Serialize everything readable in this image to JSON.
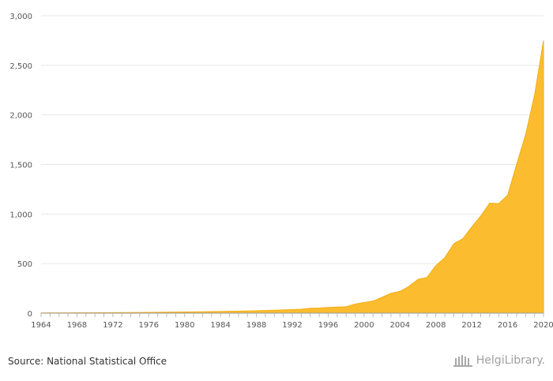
{
  "chart_data": {
    "type": "area",
    "x": [
      1964,
      1965,
      1966,
      1967,
      1968,
      1969,
      1970,
      1971,
      1972,
      1973,
      1974,
      1975,
      1976,
      1977,
      1978,
      1979,
      1980,
      1981,
      1982,
      1983,
      1984,
      1985,
      1986,
      1987,
      1988,
      1989,
      1990,
      1991,
      1992,
      1993,
      1994,
      1995,
      1996,
      1997,
      1998,
      1999,
      2000,
      2001,
      2002,
      2003,
      2004,
      2005,
      2006,
      2007,
      2008,
      2009,
      2010,
      2011,
      2012,
      2013,
      2014,
      2015,
      2016,
      2017,
      2018,
      2019,
      2020
    ],
    "values": [
      2,
      3,
      3,
      3,
      4,
      4,
      4,
      5,
      5,
      6,
      6,
      7,
      8,
      9,
      10,
      11,
      12,
      13,
      14,
      16,
      17,
      19,
      20,
      22,
      24,
      27,
      30,
      33,
      36,
      40,
      50,
      52,
      58,
      62,
      65,
      92,
      108,
      122,
      160,
      200,
      220,
      270,
      340,
      360,
      480,
      560,
      700,
      750,
      870,
      980,
      1110,
      1105,
      1190,
      1500,
      1800,
      2200,
      2750
    ],
    "xlim": [
      1964,
      2020
    ],
    "ylim": [
      0,
      3000
    ],
    "xticks": [
      "1964",
      "1968",
      "1972",
      "1976",
      "1980",
      "1984",
      "1988",
      "1992",
      "1996",
      "2000",
      "2004",
      "2008",
      "2012",
      "2016",
      "2020"
    ],
    "yticks": [
      "0",
      "500",
      "1,000",
      "1,500",
      "2,000",
      "2,500",
      "3,000"
    ],
    "grid": true,
    "color": "#fbbd2f"
  },
  "footer": {
    "source": "Source: National Statistical Office",
    "brand": "HelgiLibrary."
  },
  "colors": {
    "grid": "#e6e6e6",
    "axis": "#999999",
    "brand": "#a0a0a0"
  }
}
